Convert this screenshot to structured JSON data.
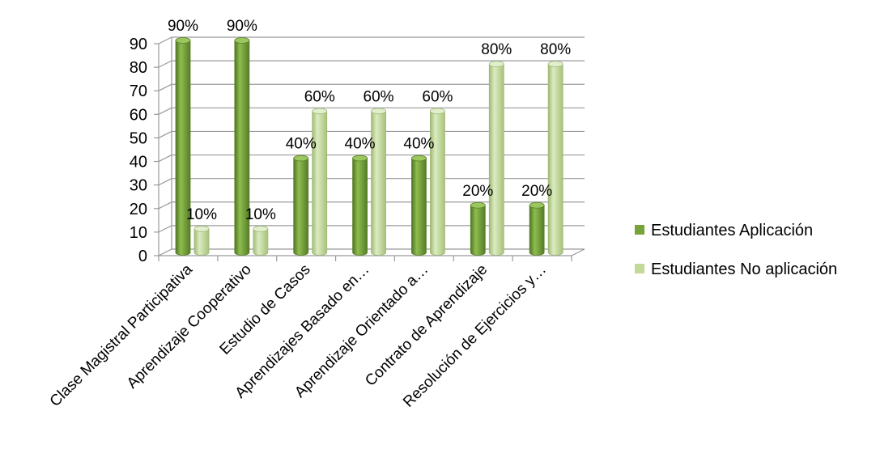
{
  "chart_data": {
    "type": "bar",
    "categories": [
      "Clase Magistral Participativa",
      "Aprendizaje Cooperativo",
      "Estudio de Casos",
      "Aprendizajes Basado en…",
      "Aprendizaje Orientado a…",
      "Contrato de Aprendizaje",
      "Resolución de Ejercicios y…"
    ],
    "series": [
      {
        "name": "Estudiantes Aplicación",
        "values": [
          90,
          90,
          40,
          40,
          40,
          20,
          20
        ],
        "data_labels": [
          "90%",
          "90%",
          "40%",
          "40%",
          "40%",
          "20%",
          "20%"
        ],
        "color": "#77a33a"
      },
      {
        "name": "Estudiantes No aplicación",
        "values": [
          10,
          10,
          60,
          60,
          60,
          80,
          80
        ],
        "data_labels": [
          "10%",
          "10%",
          "60%",
          "60%",
          "60%",
          "80%",
          "80%"
        ],
        "color": "#c3d99a"
      }
    ],
    "ylim": [
      0,
      90
    ],
    "y_ticks": [
      "0",
      "10",
      "20",
      "30",
      "40",
      "50",
      "60",
      "70",
      "80",
      "90"
    ],
    "grid": true,
    "legend_position": "right",
    "style": "3d-cylinder"
  }
}
